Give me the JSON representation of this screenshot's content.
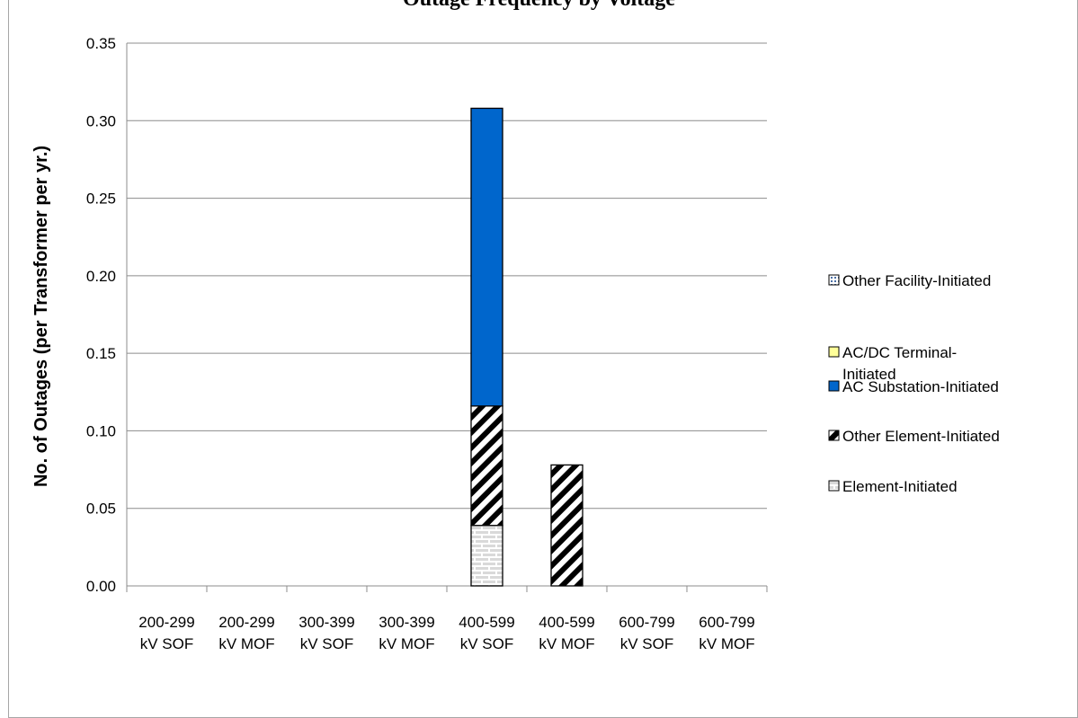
{
  "chart_data": {
    "type": "bar",
    "stacked": true,
    "title": "Outage Frequency by Voltage",
    "ylabel": "No. of Outages (per Transformer per yr.)",
    "xlabel": "",
    "ylim": [
      0,
      0.35
    ],
    "ytick_step": 0.05,
    "ytick_labels": [
      "0.00",
      "0.05",
      "0.10",
      "0.15",
      "0.20",
      "0.25",
      "0.30",
      "0.35"
    ],
    "grid": true,
    "legend_position": "right",
    "categories": [
      [
        "200-299",
        "kV SOF"
      ],
      [
        "200-299",
        "kV MOF"
      ],
      [
        "300-399",
        "kV SOF"
      ],
      [
        "300-399",
        "kV MOF"
      ],
      [
        "400-599",
        "kV SOF"
      ],
      [
        "400-599",
        "kV MOF"
      ],
      [
        "600-799",
        "kV SOF"
      ],
      [
        "600-799",
        "kV MOF"
      ]
    ],
    "series": [
      {
        "name": "Element-Initiated",
        "pattern": "brick",
        "color": "#d0d0d0",
        "values": [
          0,
          0,
          0,
          0,
          0.039,
          0,
          0,
          0
        ]
      },
      {
        "name": "Other Element-Initiated",
        "pattern": "diagonal",
        "color": "#000000",
        "values": [
          0,
          0,
          0,
          0,
          0.077,
          0.078,
          0,
          0
        ]
      },
      {
        "name": "AC Substation-Initiated",
        "pattern": "solid",
        "color": "#0066cc",
        "values": [
          0,
          0,
          0,
          0,
          0.192,
          0,
          0,
          0
        ]
      },
      {
        "name": "AC/DC Terminal-Initiated",
        "pattern": "solid",
        "color": "#ffff99",
        "values": [
          0,
          0,
          0,
          0,
          0,
          0,
          0,
          0
        ]
      },
      {
        "name": "Other Facility-Initiated",
        "pattern": "dots",
        "color": "#4a6fa5",
        "values": [
          0,
          0,
          0,
          0,
          0,
          0,
          0,
          0
        ]
      }
    ],
    "legend_order": [
      {
        "lines": [
          "Other Facility-Initiated"
        ],
        "series": 4
      },
      {
        "lines": [
          "AC/DC Terminal-",
          "Initiated"
        ],
        "series": 3
      },
      {
        "lines": [
          "AC Substation-Initiated"
        ],
        "series": 2
      },
      {
        "lines": [
          "Other Element-Initiated"
        ],
        "series": 1
      },
      {
        "lines": [
          "Element-Initiated"
        ],
        "series": 0
      }
    ]
  }
}
